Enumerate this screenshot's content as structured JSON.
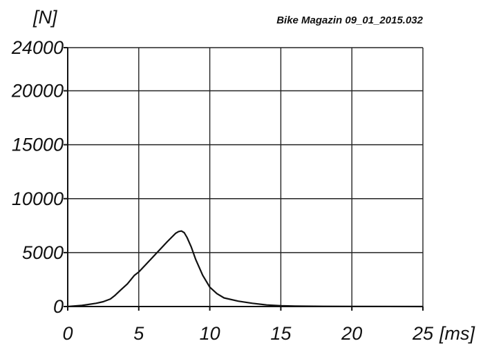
{
  "chart_data": {
    "type": "line",
    "source_label": "Bike Magazin 09_01_2015.032",
    "y_unit": "[N]",
    "x_unit": "[ms]",
    "xlim": [
      0,
      25
    ],
    "ylim": [
      0,
      24000
    ],
    "grid": true,
    "x_ticks": [
      0,
      5,
      10,
      15,
      20,
      25
    ],
    "y_ticks": [
      0,
      5000,
      10000,
      15000,
      20000,
      24000
    ],
    "x_tick_labels": [
      "0",
      "5",
      "10",
      "15",
      "20",
      "25"
    ],
    "y_tick_labels": [
      "0",
      "5000",
      "10000",
      "15000",
      "20000",
      "24000"
    ],
    "series": [
      {
        "x": [
          0,
          1,
          2,
          2.5,
          3,
          3.3,
          3.7,
          4.2,
          4.7,
          5,
          5.5,
          6,
          6.5,
          7,
          7.3,
          7.6,
          7.8,
          8,
          8.2,
          8.4,
          8.7,
          9,
          9.5,
          10,
          10.5,
          11,
          12,
          13,
          14,
          15,
          16,
          18,
          20,
          25
        ],
        "y": [
          0,
          100,
          300,
          450,
          700,
          1000,
          1500,
          2100,
          2900,
          3200,
          3900,
          4600,
          5300,
          6000,
          6400,
          6800,
          6950,
          7000,
          6850,
          6400,
          5500,
          4400,
          2900,
          1800,
          1200,
          800,
          500,
          300,
          150,
          80,
          40,
          20,
          10,
          0
        ]
      }
    ]
  }
}
